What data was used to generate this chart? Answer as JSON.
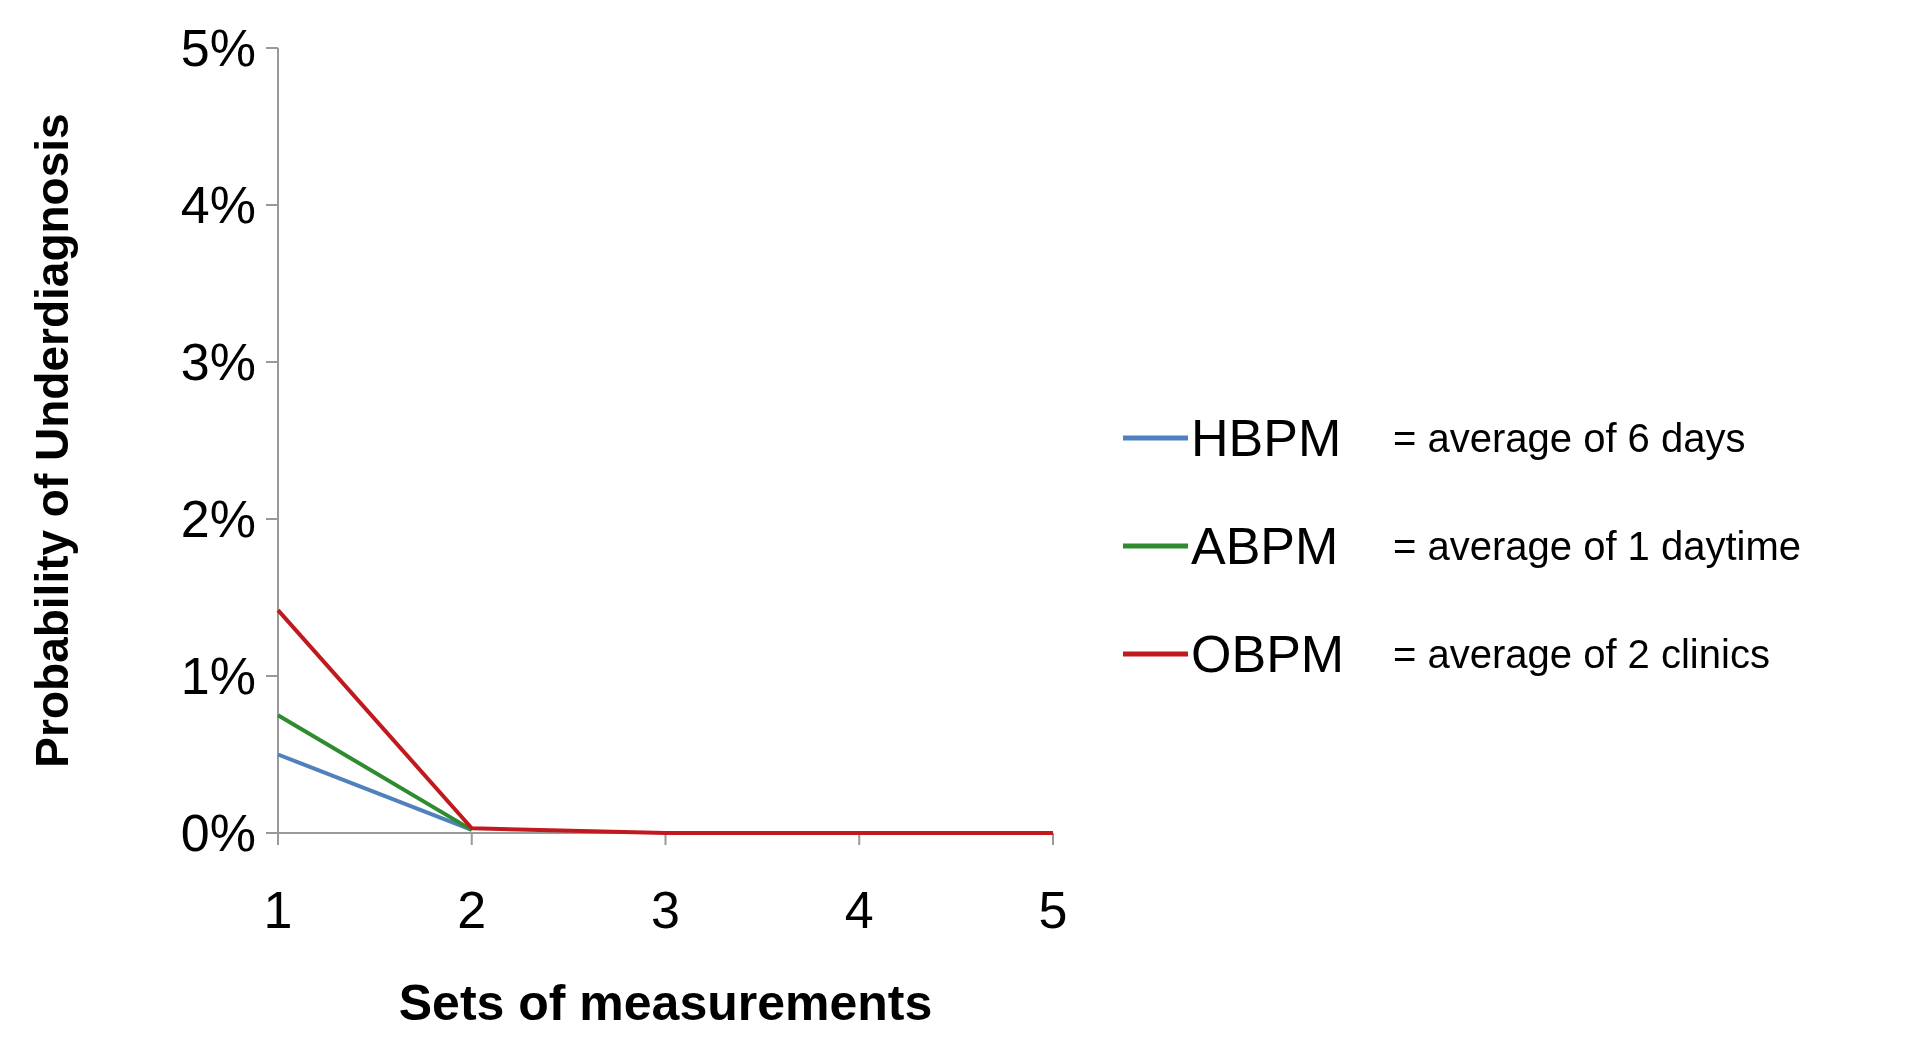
{
  "chart_data": {
    "type": "line",
    "xlabel": "Sets of measurements",
    "ylabel": "Probability of Underdiagnosis",
    "x": [
      1,
      2,
      3,
      4,
      5
    ],
    "xlim": [
      1,
      5
    ],
    "xticks": [
      1,
      2,
      3,
      4,
      5
    ],
    "ylim": [
      0,
      5
    ],
    "yticks": [
      {
        "value": 0,
        "label": "0%"
      },
      {
        "value": 1,
        "label": "1%"
      },
      {
        "value": 2,
        "label": "2%"
      },
      {
        "value": 3,
        "label": "3%"
      },
      {
        "value": 4,
        "label": "4%"
      },
      {
        "value": 5,
        "label": "5%"
      }
    ],
    "series": [
      {
        "name": "HBPM",
        "color": "#4f81bd",
        "values": [
          0.5,
          0.02,
          null,
          null,
          null
        ]
      },
      {
        "name": "ABPM",
        "color": "#2e8b2e",
        "values": [
          0.75,
          0.02,
          null,
          null,
          null
        ]
      },
      {
        "name": "OBPM",
        "color": "#c0191e",
        "values": [
          1.42,
          0.03,
          0,
          0,
          0
        ]
      }
    ],
    "annotations": [
      "= average of 6 days",
      "= average of 1 daytime",
      "= average of 2 clinics"
    ],
    "legend": "right",
    "grid": false,
    "marker": "none",
    "line_style": "solid"
  }
}
